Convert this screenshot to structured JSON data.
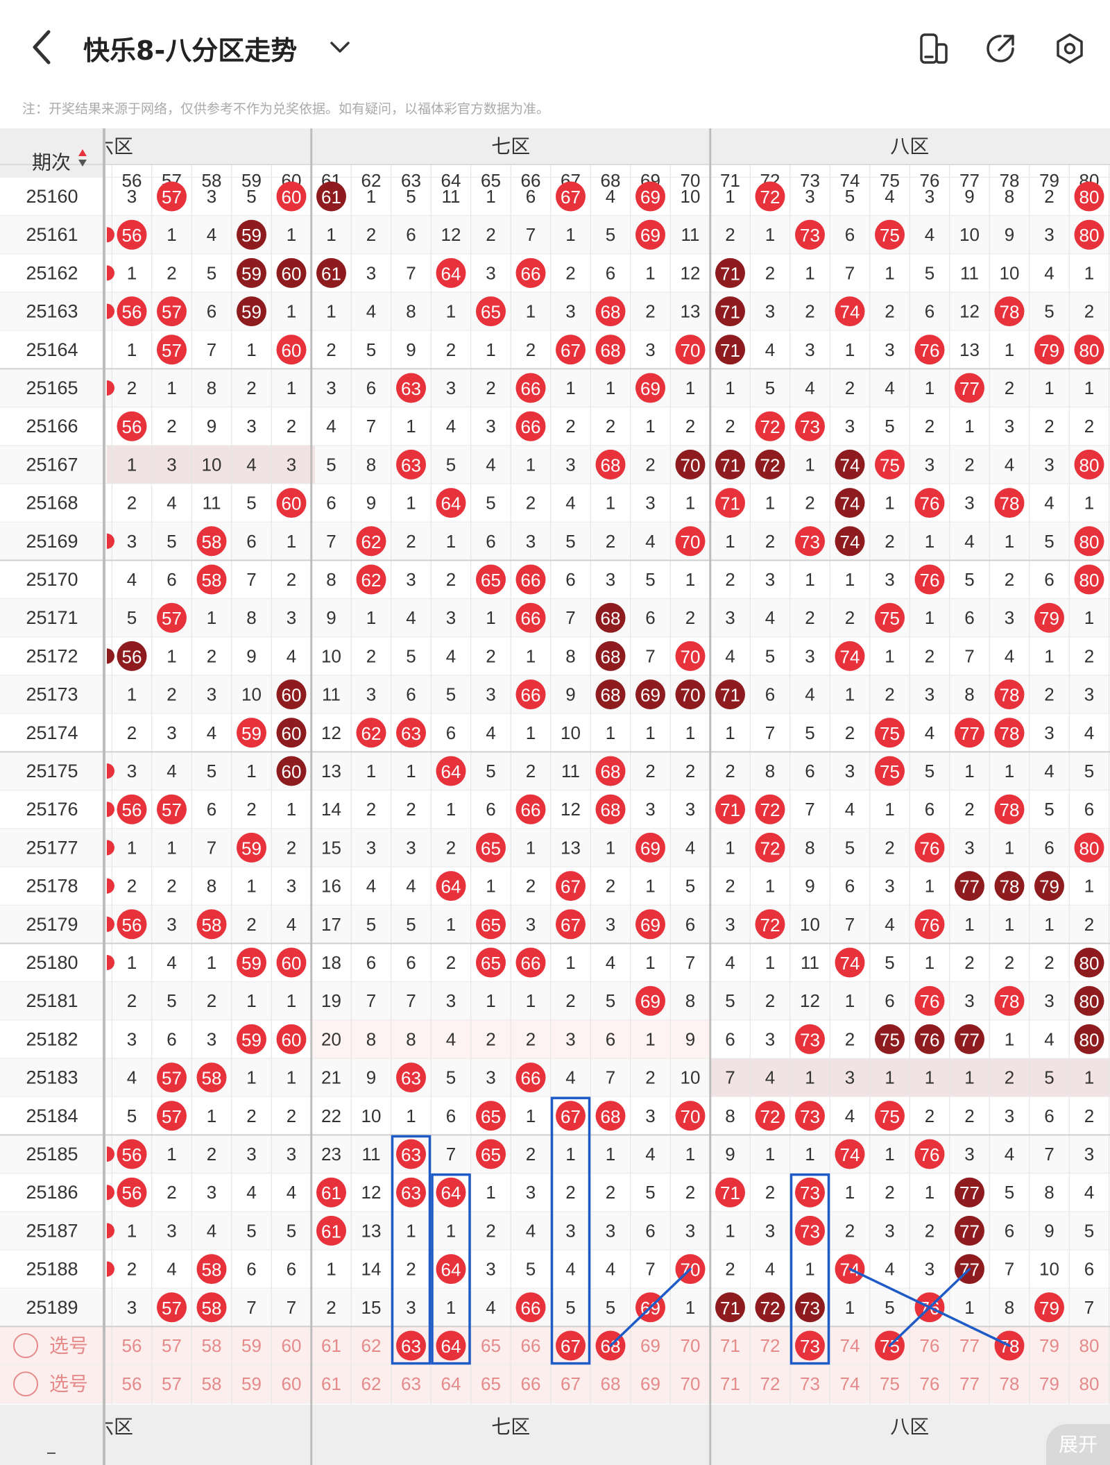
{
  "app": {
    "title": "快乐8-八分区走势",
    "notice": "注：开奖结果来源于网络，仅供参考不作为兑奖依据。如有疑问，以福体彩官方数据为准。",
    "expand_label": "展开"
  },
  "header": {
    "period_label": "期次",
    "zones": [
      {
        "label": "六区",
        "visible_text": "六区"
      },
      {
        "label": "七区",
        "visible_text": "七区"
      },
      {
        "label": "八区",
        "visible_text": "八区"
      }
    ],
    "numbers": [
      "56",
      "57",
      "58",
      "59",
      "60",
      "61",
      "62",
      "63",
      "64",
      "65",
      "66",
      "67",
      "68",
      "69",
      "70",
      "71",
      "72",
      "73",
      "74",
      "75",
      "76",
      "77",
      "78",
      "79",
      "80"
    ]
  },
  "colors": {
    "hit": "#e8323b",
    "hit_dark": "#8e1c1f",
    "miss_text": "#333333",
    "select_text": "#e58a8a",
    "select_bg": "#fdeeee",
    "box": "#1e5bc6"
  },
  "rows": [
    {
      "period": "25160",
      "cells": [
        "3",
        "57",
        "3",
        "5",
        "60",
        "61",
        "1",
        "5",
        "11",
        "1",
        "6",
        "67",
        "4",
        "69",
        "10",
        "1",
        "72",
        "3",
        "5",
        "4",
        "3",
        "9",
        "8",
        "2",
        "80"
      ],
      "dark": [
        61
      ]
    },
    {
      "period": "25161",
      "cells": [
        "56",
        "1",
        "4",
        "59",
        "1",
        "1",
        "2",
        "6",
        "12",
        "2",
        "7",
        "1",
        "5",
        "69",
        "11",
        "2",
        "1",
        "73",
        "6",
        "75",
        "4",
        "10",
        "9",
        "3",
        "80"
      ],
      "dark": [
        59
      ]
    },
    {
      "period": "25162",
      "cells": [
        "1",
        "2",
        "5",
        "59",
        "60",
        "61",
        "3",
        "7",
        "64",
        "3",
        "66",
        "2",
        "6",
        "1",
        "12",
        "71",
        "2",
        "1",
        "7",
        "1",
        "5",
        "11",
        "10",
        "4",
        "1"
      ],
      "dark": [
        59,
        60,
        61,
        71
      ]
    },
    {
      "period": "25163",
      "cells": [
        "56",
        "57",
        "6",
        "59",
        "1",
        "1",
        "4",
        "8",
        "1",
        "65",
        "1",
        "3",
        "68",
        "2",
        "13",
        "71",
        "3",
        "2",
        "74",
        "2",
        "6",
        "12",
        "78",
        "5",
        "2"
      ],
      "dark": [
        59,
        71
      ]
    },
    {
      "period": "25164",
      "cells": [
        "1",
        "57",
        "7",
        "1",
        "60",
        "2",
        "5",
        "9",
        "2",
        "1",
        "2",
        "67",
        "68",
        "3",
        "70",
        "71",
        "4",
        "3",
        "1",
        "3",
        "76",
        "13",
        "1",
        "79",
        "80"
      ],
      "dark": [
        71
      ]
    },
    {
      "period": "25165",
      "cells": [
        "2",
        "1",
        "8",
        "2",
        "1",
        "3",
        "6",
        "63",
        "3",
        "2",
        "66",
        "1",
        "1",
        "69",
        "1",
        "1",
        "5",
        "4",
        "2",
        "4",
        "1",
        "77",
        "2",
        "1",
        "1"
      ],
      "dark": []
    },
    {
      "period": "25166",
      "cells": [
        "56",
        "2",
        "9",
        "3",
        "2",
        "4",
        "7",
        "1",
        "4",
        "3",
        "66",
        "2",
        "2",
        "1",
        "2",
        "2",
        "72",
        "73",
        "3",
        "5",
        "2",
        "1",
        "3",
        "2",
        "2"
      ],
      "dark": []
    },
    {
      "period": "25167",
      "cells": [
        "1",
        "3",
        "10",
        "4",
        "3",
        "5",
        "8",
        "63",
        "5",
        "4",
        "1",
        "3",
        "68",
        "2",
        "70",
        "71",
        "72",
        "1",
        "74",
        "75",
        "3",
        "2",
        "4",
        "3",
        "80"
      ],
      "dark": [
        70,
        71,
        72,
        74
      ]
    },
    {
      "period": "25168",
      "cells": [
        "2",
        "4",
        "11",
        "5",
        "60",
        "6",
        "9",
        "1",
        "64",
        "5",
        "2",
        "4",
        "1",
        "3",
        "1",
        "71",
        "1",
        "2",
        "74",
        "1",
        "76",
        "3",
        "78",
        "4",
        "1"
      ],
      "dark": [
        74
      ]
    },
    {
      "period": "25169",
      "cells": [
        "3",
        "5",
        "58",
        "6",
        "1",
        "7",
        "62",
        "2",
        "1",
        "6",
        "3",
        "5",
        "2",
        "4",
        "70",
        "1",
        "2",
        "73",
        "74",
        "2",
        "1",
        "4",
        "1",
        "5",
        "80"
      ],
      "dark": [
        74
      ]
    },
    {
      "period": "25170",
      "cells": [
        "4",
        "6",
        "58",
        "7",
        "2",
        "8",
        "62",
        "3",
        "2",
        "65",
        "66",
        "6",
        "3",
        "5",
        "1",
        "2",
        "3",
        "1",
        "1",
        "3",
        "76",
        "5",
        "2",
        "6",
        "80"
      ],
      "dark": []
    },
    {
      "period": "25171",
      "cells": [
        "5",
        "57",
        "1",
        "8",
        "3",
        "9",
        "1",
        "4",
        "3",
        "1",
        "66",
        "7",
        "68",
        "6",
        "2",
        "3",
        "4",
        "2",
        "2",
        "75",
        "1",
        "6",
        "3",
        "79",
        "1"
      ],
      "dark": [
        68
      ]
    },
    {
      "period": "25172",
      "cells": [
        "56",
        "1",
        "2",
        "9",
        "4",
        "10",
        "2",
        "5",
        "4",
        "2",
        "1",
        "8",
        "68",
        "7",
        "70",
        "4",
        "5",
        "3",
        "74",
        "1",
        "2",
        "7",
        "4",
        "1",
        "2"
      ],
      "dark": [
        56,
        68
      ]
    },
    {
      "period": "25173",
      "cells": [
        "1",
        "2",
        "3",
        "10",
        "60",
        "11",
        "3",
        "6",
        "5",
        "3",
        "66",
        "9",
        "68",
        "69",
        "70",
        "71",
        "6",
        "4",
        "1",
        "2",
        "3",
        "8",
        "78",
        "2",
        "3"
      ],
      "dark": [
        60,
        68,
        69,
        70,
        71
      ]
    },
    {
      "period": "25174",
      "cells": [
        "2",
        "3",
        "4",
        "59",
        "60",
        "12",
        "62",
        "63",
        "6",
        "4",
        "1",
        "10",
        "1",
        "1",
        "1",
        "1",
        "7",
        "5",
        "2",
        "75",
        "4",
        "77",
        "78",
        "3",
        "4"
      ],
      "dark": [
        60
      ]
    },
    {
      "period": "25175",
      "cells": [
        "3",
        "4",
        "5",
        "1",
        "60",
        "13",
        "1",
        "1",
        "64",
        "5",
        "2",
        "11",
        "68",
        "2",
        "2",
        "2",
        "8",
        "6",
        "3",
        "75",
        "5",
        "1",
        "1",
        "4",
        "5"
      ],
      "dark": [
        60
      ]
    },
    {
      "period": "25176",
      "cells": [
        "56",
        "57",
        "6",
        "2",
        "1",
        "14",
        "2",
        "2",
        "1",
        "6",
        "66",
        "12",
        "68",
        "3",
        "3",
        "71",
        "72",
        "7",
        "4",
        "1",
        "6",
        "2",
        "78",
        "5",
        "6"
      ],
      "dark": []
    },
    {
      "period": "25177",
      "cells": [
        "1",
        "1",
        "7",
        "59",
        "2",
        "15",
        "3",
        "3",
        "2",
        "65",
        "1",
        "13",
        "1",
        "69",
        "4",
        "1",
        "72",
        "8",
        "5",
        "2",
        "76",
        "3",
        "1",
        "6",
        "80"
      ],
      "dark": []
    },
    {
      "period": "25178",
      "cells": [
        "2",
        "2",
        "8",
        "1",
        "3",
        "16",
        "4",
        "4",
        "64",
        "1",
        "2",
        "67",
        "2",
        "1",
        "5",
        "2",
        "1",
        "9",
        "6",
        "3",
        "1",
        "77",
        "78",
        "79",
        "1"
      ],
      "dark": [
        77,
        78,
        79
      ]
    },
    {
      "period": "25179",
      "cells": [
        "56",
        "3",
        "58",
        "2",
        "4",
        "17",
        "5",
        "5",
        "1",
        "65",
        "3",
        "67",
        "3",
        "69",
        "6",
        "3",
        "72",
        "10",
        "7",
        "4",
        "76",
        "1",
        "1",
        "1",
        "2"
      ],
      "dark": []
    },
    {
      "period": "25180",
      "cells": [
        "1",
        "4",
        "1",
        "59",
        "60",
        "18",
        "6",
        "6",
        "2",
        "65",
        "66",
        "1",
        "4",
        "1",
        "7",
        "4",
        "1",
        "11",
        "74",
        "5",
        "1",
        "2",
        "2",
        "2",
        "80"
      ],
      "dark": [
        80
      ]
    },
    {
      "period": "25181",
      "cells": [
        "2",
        "5",
        "2",
        "1",
        "1",
        "19",
        "7",
        "7",
        "3",
        "1",
        "1",
        "2",
        "5",
        "69",
        "8",
        "5",
        "2",
        "12",
        "1",
        "6",
        "76",
        "3",
        "78",
        "3",
        "80"
      ],
      "dark": [
        80
      ]
    },
    {
      "period": "25182",
      "cells": [
        "3",
        "6",
        "3",
        "59",
        "60",
        "20",
        "8",
        "8",
        "4",
        "2",
        "2",
        "3",
        "6",
        "1",
        "9",
        "6",
        "3",
        "73",
        "2",
        "75",
        "76",
        "77",
        "1",
        "4",
        "80"
      ],
      "dark": [
        75,
        76,
        77,
        80
      ]
    },
    {
      "period": "25183",
      "cells": [
        "4",
        "57",
        "58",
        "1",
        "1",
        "21",
        "9",
        "63",
        "5",
        "3",
        "66",
        "4",
        "7",
        "2",
        "10",
        "7",
        "4",
        "1",
        "3",
        "1",
        "1",
        "1",
        "2",
        "5",
        "1"
      ],
      "dark": []
    },
    {
      "period": "25184",
      "cells": [
        "5",
        "57",
        "1",
        "2",
        "2",
        "22",
        "10",
        "1",
        "6",
        "65",
        "1",
        "67",
        "68",
        "3",
        "70",
        "8",
        "72",
        "73",
        "4",
        "75",
        "2",
        "2",
        "3",
        "6",
        "2"
      ],
      "dark": []
    },
    {
      "period": "25185",
      "cells": [
        "56",
        "1",
        "2",
        "3",
        "3",
        "23",
        "11",
        "63",
        "7",
        "65",
        "2",
        "1",
        "1",
        "4",
        "1",
        "9",
        "1",
        "1",
        "74",
        "1",
        "76",
        "3",
        "4",
        "7",
        "3"
      ],
      "dark": []
    },
    {
      "period": "25186",
      "cells": [
        "56",
        "2",
        "3",
        "4",
        "4",
        "61",
        "12",
        "63",
        "64",
        "1",
        "3",
        "2",
        "2",
        "5",
        "2",
        "71",
        "2",
        "73",
        "1",
        "2",
        "1",
        "77",
        "5",
        "8",
        "4"
      ],
      "dark": [
        77
      ]
    },
    {
      "period": "25187",
      "cells": [
        "1",
        "3",
        "4",
        "5",
        "5",
        "61",
        "13",
        "1",
        "1",
        "2",
        "4",
        "3",
        "3",
        "6",
        "3",
        "1",
        "3",
        "73",
        "2",
        "3",
        "2",
        "77",
        "6",
        "9",
        "5"
      ],
      "dark": [
        77
      ]
    },
    {
      "period": "25188",
      "cells": [
        "2",
        "4",
        "58",
        "6",
        "6",
        "1",
        "14",
        "2",
        "64",
        "3",
        "5",
        "4",
        "4",
        "7",
        "70",
        "2",
        "4",
        "1",
        "74",
        "4",
        "3",
        "77",
        "7",
        "10",
        "6"
      ],
      "dark": [
        77
      ]
    },
    {
      "period": "25189",
      "cells": [
        "3",
        "57",
        "58",
        "7",
        "7",
        "2",
        "15",
        "3",
        "1",
        "4",
        "66",
        "5",
        "5",
        "69",
        "1",
        "71",
        "72",
        "73",
        "1",
        "5",
        "76",
        "1",
        "8",
        "79",
        "7"
      ],
      "dark": [
        71,
        72,
        73
      ]
    }
  ],
  "select_rows": [
    {
      "label": "选号",
      "selected": [
        "63",
        "64",
        "67",
        "68",
        "73",
        "75",
        "78"
      ]
    },
    {
      "label": "选号",
      "selected": []
    }
  ],
  "icons": [
    "back-arrow-icon",
    "chevron-down-icon",
    "layout-toggle-icon",
    "share-icon",
    "settings-icon",
    "sort-arrows-icon"
  ]
}
